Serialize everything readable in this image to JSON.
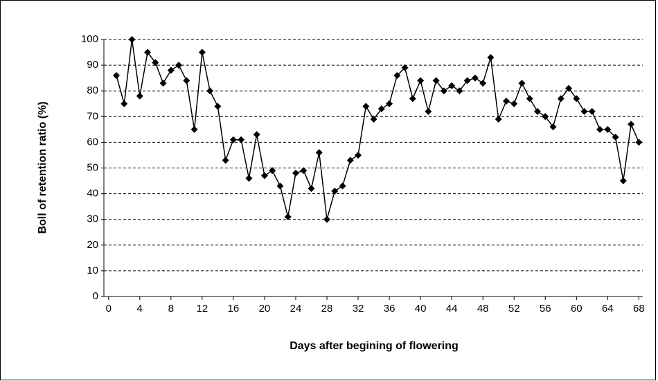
{
  "chart_data": {
    "type": "line",
    "x_label": "Days after begining of flowering",
    "y_label": "Boll of retention ratio (%)",
    "x": [
      1,
      2,
      3,
      4,
      5,
      6,
      7,
      8,
      9,
      10,
      11,
      12,
      13,
      14,
      15,
      16,
      17,
      18,
      19,
      20,
      21,
      22,
      23,
      24,
      25,
      26,
      27,
      28,
      29,
      30,
      31,
      32,
      33,
      34,
      35,
      36,
      37,
      38,
      39,
      40,
      41,
      42,
      43,
      44,
      45,
      46,
      47,
      48,
      49,
      50,
      51,
      52,
      53,
      54,
      55,
      56,
      57,
      58,
      59,
      60,
      61,
      62,
      63,
      64,
      65,
      66,
      67,
      68
    ],
    "series": [
      {
        "color": "#000000",
        "values": [
          86,
          75,
          100,
          78,
          95,
          91,
          83,
          88,
          90,
          84,
          65,
          95,
          80,
          74,
          53,
          61,
          61,
          46,
          63,
          47,
          49,
          43,
          31,
          48,
          49,
          42,
          56,
          30,
          41,
          43,
          53,
          55,
          74,
          69,
          73,
          75,
          86,
          89,
          77,
          84,
          72,
          84,
          80,
          82,
          80,
          84,
          85,
          83,
          93,
          69,
          76,
          75,
          83,
          77,
          72,
          70,
          66,
          77,
          81,
          77,
          72,
          72,
          65,
          65,
          62,
          45,
          67,
          60
        ]
      }
    ],
    "xlim": [
      -0.6,
      68.5
    ],
    "ylim": [
      0,
      100
    ],
    "xticks": [
      0,
      4,
      8,
      12,
      16,
      20,
      24,
      28,
      32,
      36,
      40,
      44,
      48,
      52,
      56,
      60,
      64,
      68
    ],
    "yticks": [
      0,
      10,
      20,
      30,
      40,
      50,
      60,
      70,
      80,
      90,
      100
    ],
    "grid": true
  }
}
